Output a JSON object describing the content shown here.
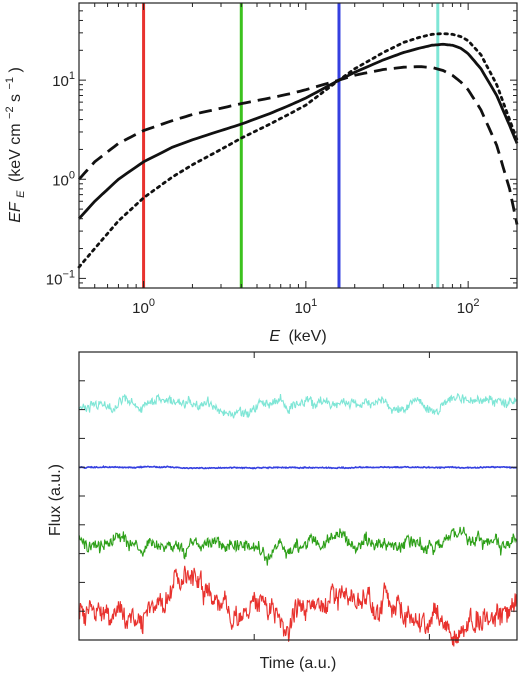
{
  "chart_data": [
    {
      "type": "line",
      "xlabel_var": "E",
      "xlabel_unit": "(keV)",
      "ylabel_var": "EF",
      "ylabel_sub": "E",
      "ylabel_unit": "(keV cm",
      "ylabel_exp1": "−2",
      "ylabel_mid": " s",
      "ylabel_exp2": "−1",
      "ylabel_close": ")",
      "x_scale": "log",
      "y_scale": "log",
      "xlim": [
        0.4,
        200
      ],
      "ylim": [
        0.08,
        60
      ],
      "x_ticks": [
        {
          "value": 1,
          "base": "10",
          "exp": "0"
        },
        {
          "value": 10,
          "base": "10",
          "exp": "1"
        },
        {
          "value": 100,
          "base": "10",
          "exp": "2"
        }
      ],
      "y_ticks": [
        {
          "value": 0.1,
          "base": "10",
          "exp": "−1"
        },
        {
          "value": 1,
          "base": "10",
          "exp": "0"
        },
        {
          "value": 10,
          "base": "10",
          "exp": "1"
        }
      ],
      "vertical_lines": [
        {
          "x": 1,
          "color": "#e8322e"
        },
        {
          "x": 4,
          "color": "#3cc21e"
        },
        {
          "x": 16,
          "color": "#3540e0"
        },
        {
          "x": 65,
          "color": "#7fe6d6"
        }
      ],
      "series": [
        {
          "style": "solid",
          "x": [
            0.4,
            0.5,
            0.7,
            1.0,
            1.5,
            2.0,
            3.0,
            4.0,
            6.0,
            8.0,
            10,
            16,
            20,
            30,
            40,
            50,
            60,
            70,
            80,
            90,
            100,
            120,
            150,
            180,
            200
          ],
          "y": [
            0.4,
            0.6,
            1.0,
            1.5,
            2.1,
            2.5,
            3.1,
            3.6,
            4.6,
            5.6,
            6.6,
            10.0,
            12.0,
            16.0,
            19.0,
            21.0,
            22.5,
            23.0,
            22.5,
            21.0,
            18.5,
            13.0,
            7.0,
            3.5,
            2.3
          ]
        },
        {
          "style": "dashed",
          "x": [
            0.4,
            0.5,
            0.7,
            1.0,
            1.5,
            2.0,
            3.0,
            4.0,
            6.0,
            8.0,
            10,
            16,
            20,
            30,
            40,
            50,
            60,
            70,
            80,
            90,
            100,
            120,
            150,
            180,
            200
          ],
          "y": [
            1.0,
            1.5,
            2.3,
            3.1,
            3.9,
            4.5,
            5.2,
            5.8,
            6.6,
            7.3,
            8.0,
            10.0,
            11.2,
            12.8,
            13.5,
            13.7,
            13.4,
            12.5,
            11.2,
            9.6,
            8.0,
            5.0,
            2.2,
            0.8,
            0.35
          ]
        },
        {
          "style": "dotted",
          "x": [
            0.4,
            0.5,
            0.7,
            1.0,
            1.5,
            2.0,
            3.0,
            4.0,
            6.0,
            8.0,
            10,
            16,
            20,
            30,
            40,
            50,
            60,
            70,
            80,
            90,
            100,
            120,
            150,
            180,
            200
          ],
          "y": [
            0.13,
            0.2,
            0.38,
            0.65,
            1.05,
            1.4,
            2.0,
            2.6,
            3.6,
            4.6,
            5.6,
            10.0,
            13.0,
            19.0,
            24.0,
            27.0,
            29.0,
            29.5,
            29.0,
            27.5,
            25.0,
            18.0,
            9.0,
            4.0,
            2.5
          ]
        }
      ]
    },
    {
      "type": "line",
      "xlabel": "Time (a.u.)",
      "ylabel": "Flux (a.u.)",
      "series": [
        {
          "color": "#7fe6d6",
          "base": 0.82,
          "amplitude": 0.028,
          "noise": 0.012,
          "seed": 7
        },
        {
          "color": "#3540e0",
          "base": 0.6,
          "amplitude": 0.002,
          "noise": 0.0015,
          "seed": 11
        },
        {
          "color": "#2ea019",
          "base": 0.345,
          "amplitude": 0.04,
          "noise": 0.016,
          "seed": 23
        },
        {
          "color": "#e8322e",
          "base": 0.11,
          "amplitude": 0.07,
          "noise": 0.03,
          "seed": 41
        }
      ]
    }
  ]
}
